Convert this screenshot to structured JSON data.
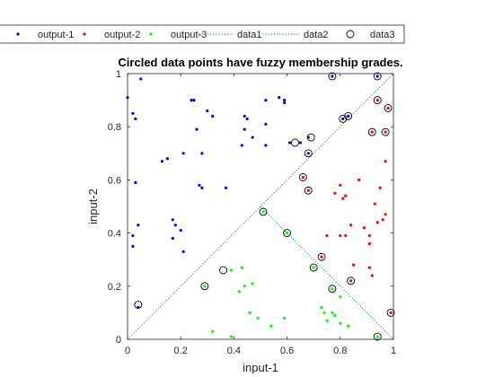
{
  "chart_data": {
    "type": "scatter",
    "title": "Circled data points have fuzzy membership grades.",
    "xlabel": "input-1",
    "ylabel": "input-2",
    "xlim": [
      0,
      1
    ],
    "ylim": [
      0,
      1
    ],
    "xticks": [
      "0",
      "0.2",
      "0.4",
      "0.6",
      "0.8",
      "1"
    ],
    "yticks": [
      "0",
      "0.2",
      "0.4",
      "0.6",
      "0.8",
      "1"
    ],
    "grid": false,
    "legend": {
      "placement": "top",
      "orientation": "horizontal",
      "entries": [
        "output-1",
        "output-2",
        "output-3",
        "data1",
        "data2",
        "data3"
      ]
    },
    "colors": {
      "output-1": "#0000ff",
      "output-2": "#ff0000",
      "output-3": "#00ff00",
      "data1": "#0072bd",
      "data2": "#0072bd",
      "data3": "#000000"
    },
    "series": [
      {
        "name": "output-1",
        "marker": "dot",
        "points": [
          [
            0.0,
            0.91
          ],
          [
            0.02,
            0.85
          ],
          [
            0.03,
            0.83
          ],
          [
            0.05,
            0.98
          ],
          [
            0.03,
            0.59
          ],
          [
            0.02,
            0.39
          ],
          [
            0.04,
            0.43
          ],
          [
            0.02,
            0.35
          ],
          [
            0.04,
            0.12
          ],
          [
            0.13,
            0.67
          ],
          [
            0.15,
            0.68
          ],
          [
            0.17,
            0.45
          ],
          [
            0.17,
            0.38
          ],
          [
            0.18,
            0.43
          ],
          [
            0.2,
            0.41
          ],
          [
            0.21,
            0.33
          ],
          [
            0.21,
            0.7
          ],
          [
            0.24,
            0.9
          ],
          [
            0.25,
            0.9
          ],
          [
            0.26,
            0.79
          ],
          [
            0.27,
            0.58
          ],
          [
            0.28,
            0.57
          ],
          [
            0.28,
            0.7
          ],
          [
            0.3,
            0.86
          ],
          [
            0.32,
            0.84
          ],
          [
            0.37,
            0.57
          ],
          [
            0.43,
            0.73
          ],
          [
            0.44,
            0.84
          ],
          [
            0.44,
            0.79
          ],
          [
            0.45,
            0.83
          ],
          [
            0.47,
            0.76
          ],
          [
            0.52,
            0.9
          ],
          [
            0.52,
            0.73
          ],
          [
            0.52,
            0.81
          ],
          [
            0.57,
            0.91
          ],
          [
            0.59,
            0.89
          ],
          [
            0.59,
            0.9
          ],
          [
            0.61,
            0.74
          ],
          [
            0.65,
            0.74
          ],
          [
            0.68,
            0.7
          ],
          [
            0.68,
            0.76
          ],
          [
            0.77,
            0.99
          ],
          [
            0.81,
            0.83
          ],
          [
            0.83,
            0.84
          ],
          [
            0.94,
            0.99
          ]
        ]
      },
      {
        "name": "output-2",
        "marker": "dot",
        "points": [
          [
            0.66,
            0.61
          ],
          [
            0.68,
            0.56
          ],
          [
            0.73,
            0.31
          ],
          [
            0.75,
            0.39
          ],
          [
            0.78,
            0.55
          ],
          [
            0.8,
            0.39
          ],
          [
            0.8,
            0.58
          ],
          [
            0.81,
            0.53
          ],
          [
            0.82,
            0.39
          ],
          [
            0.82,
            0.54
          ],
          [
            0.84,
            0.22
          ],
          [
            0.84,
            0.43
          ],
          [
            0.85,
            0.28
          ],
          [
            0.87,
            0.6
          ],
          [
            0.89,
            0.42
          ],
          [
            0.91,
            0.27
          ],
          [
            0.91,
            0.36
          ],
          [
            0.91,
            0.39
          ],
          [
            0.92,
            0.24
          ],
          [
            0.92,
            0.78
          ],
          [
            0.93,
            0.51
          ],
          [
            0.94,
            0.44
          ],
          [
            0.94,
            0.9
          ],
          [
            0.95,
            0.57
          ],
          [
            0.96,
            0.45
          ],
          [
            0.97,
            0.78
          ],
          [
            0.97,
            0.47
          ],
          [
            0.97,
            0.67
          ],
          [
            0.98,
            0.87
          ],
          [
            0.99,
            0.1
          ]
        ]
      },
      {
        "name": "output-3",
        "marker": "dot",
        "points": [
          [
            0.29,
            0.2
          ],
          [
            0.32,
            0.03
          ],
          [
            0.39,
            0.26
          ],
          [
            0.39,
            0.01
          ],
          [
            0.42,
            0.18
          ],
          [
            0.43,
            0.27
          ],
          [
            0.44,
            0.2
          ],
          [
            0.46,
            0.1
          ],
          [
            0.47,
            0.21
          ],
          [
            0.49,
            0.08
          ],
          [
            0.51,
            0.48
          ],
          [
            0.54,
            0.05
          ],
          [
            0.59,
            0.08
          ],
          [
            0.6,
            0.4
          ],
          [
            0.7,
            0.27
          ],
          [
            0.73,
            0.12
          ],
          [
            0.74,
            0.1
          ],
          [
            0.75,
            0.07
          ],
          [
            0.77,
            0.19
          ],
          [
            0.77,
            0.1
          ],
          [
            0.78,
            0.09
          ],
          [
            0.8,
            0.06
          ],
          [
            0.8,
            0.16
          ],
          [
            0.83,
            0.05
          ],
          [
            0.94,
            0.01
          ]
        ]
      },
      {
        "name": "data1",
        "marker": "dotted-line",
        "points": [
          [
            0,
            0
          ],
          [
            1,
            1
          ]
        ]
      },
      {
        "name": "data2",
        "marker": "dotted-line",
        "points": [
          [
            0.5,
            0.5
          ],
          [
            1,
            0
          ]
        ]
      },
      {
        "name": "data3",
        "marker": "circle",
        "points": [
          [
            0.04,
            0.13
          ],
          [
            0.29,
            0.2
          ],
          [
            0.36,
            0.26
          ],
          [
            0.51,
            0.48
          ],
          [
            0.6,
            0.4
          ],
          [
            0.63,
            0.74
          ],
          [
            0.66,
            0.61
          ],
          [
            0.68,
            0.56
          ],
          [
            0.68,
            0.7
          ],
          [
            0.69,
            0.76
          ],
          [
            0.7,
            0.27
          ],
          [
            0.73,
            0.31
          ],
          [
            0.77,
            0.99
          ],
          [
            0.77,
            0.19
          ],
          [
            0.81,
            0.83
          ],
          [
            0.83,
            0.84
          ],
          [
            0.84,
            0.22
          ],
          [
            0.92,
            0.78
          ],
          [
            0.94,
            0.9
          ],
          [
            0.94,
            0.99
          ],
          [
            0.94,
            0.01
          ],
          [
            0.97,
            0.78
          ],
          [
            0.98,
            0.87
          ],
          [
            0.99,
            0.1
          ]
        ]
      }
    ]
  }
}
